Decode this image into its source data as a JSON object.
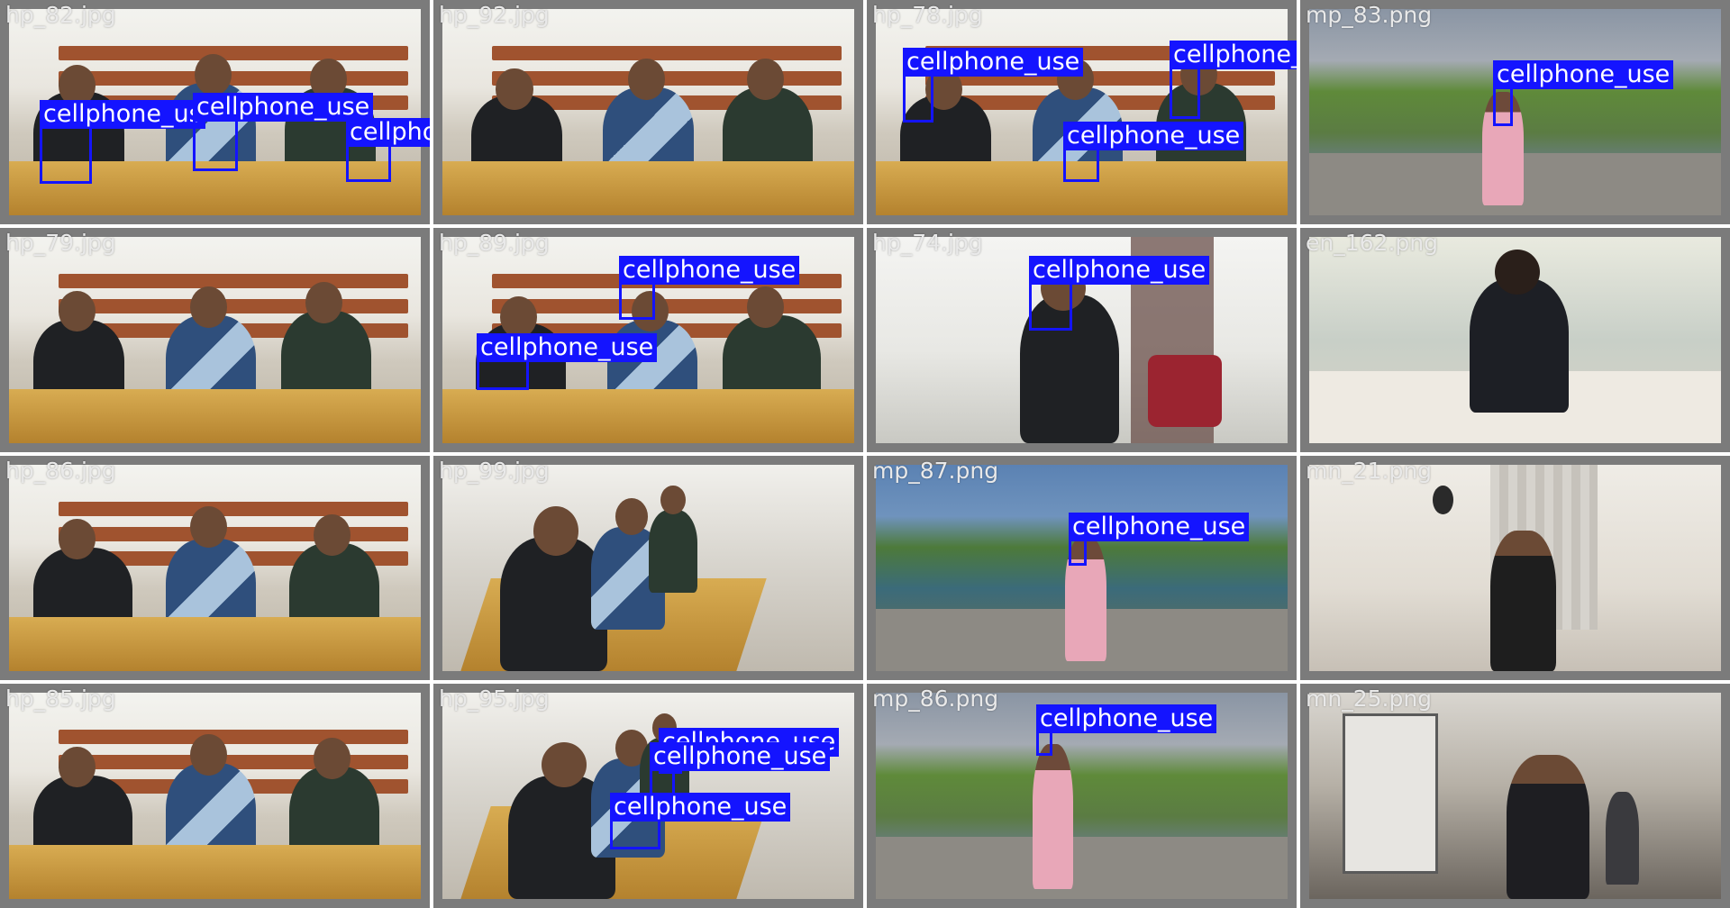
{
  "tiles": [
    {
      "filename": "hp_82.jpg",
      "scene": "classroom-three",
      "detections": [
        "cellphone_us",
        "cellphone_use",
        "cellphone_use"
      ]
    },
    {
      "filename": "hp_92.jpg",
      "scene": "classroom-three",
      "detections": []
    },
    {
      "filename": "hp_78.jpg",
      "scene": "classroom-three",
      "detections": [
        "cellphone_use",
        "cellphone_use",
        "cellphone_use"
      ]
    },
    {
      "filename": "mp_83.png",
      "scene": "river-dusk",
      "detections": [
        "cellphone_use"
      ]
    },
    {
      "filename": "hp_79.jpg",
      "scene": "classroom-three",
      "detections": []
    },
    {
      "filename": "hp_89.jpg",
      "scene": "classroom-three",
      "detections": [
        "cellphone_use",
        "cellphone_use"
      ]
    },
    {
      "filename": "hp_74.jpg",
      "scene": "office-standing",
      "detections": [
        "cellphone_use"
      ]
    },
    {
      "filename": "en_162.png",
      "scene": "study-desk",
      "detections": []
    },
    {
      "filename": "hp_86.jpg",
      "scene": "classroom-three",
      "detections": []
    },
    {
      "filename": "hp_99.jpg",
      "scene": "classroom-side",
      "detections": []
    },
    {
      "filename": "mp_87.png",
      "scene": "river-blue",
      "detections": [
        "cellphone_use"
      ]
    },
    {
      "filename": "mn_21.png",
      "scene": "room-tank",
      "detections": []
    },
    {
      "filename": "hp_85.jpg",
      "scene": "classroom-three",
      "detections": []
    },
    {
      "filename": "hp_95.jpg",
      "scene": "classroom-side",
      "detections": [
        "cellphone_use",
        "cellphone_use",
        "cellphone_use"
      ]
    },
    {
      "filename": "mp_86.png",
      "scene": "river-dusk",
      "detections": [
        "cellphone_use"
      ]
    },
    {
      "filename": "mn_25.png",
      "scene": "gym",
      "detections": []
    }
  ],
  "colors": {
    "tile_border": "#7b7b7b",
    "box": "#1414ff",
    "label_text": "#ffffff",
    "filename_text": "#e9e9e9"
  }
}
